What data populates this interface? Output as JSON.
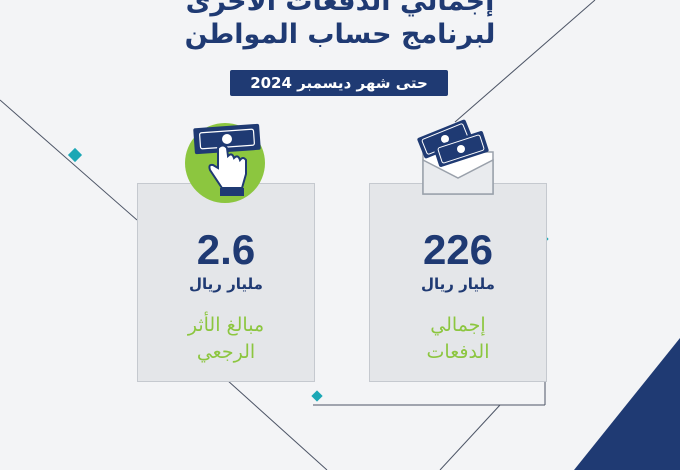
{
  "header": {
    "title_line1": "إجمالي الدفعات الأخرى",
    "title_line2": "لبرنامج حساب المواطن",
    "date_label": "حتى شهر ديسمبر 2024"
  },
  "cards": [
    {
      "value": "2.6",
      "unit": "مليار ريال",
      "label_line1": "مبالغ الأثر",
      "label_line2": "الرجعي",
      "icon": "hand-money-icon"
    },
    {
      "value": "226",
      "unit": "مليار ريال",
      "label_line1": "إجمالي",
      "label_line2": "الدفعات",
      "icon": "envelope-money-icon"
    }
  ],
  "colors": {
    "navy": "#1f3a73",
    "green": "#8cc63f",
    "teal": "#1ba7b5",
    "card": "#e4e6e9",
    "background": "#f3f4f6"
  }
}
